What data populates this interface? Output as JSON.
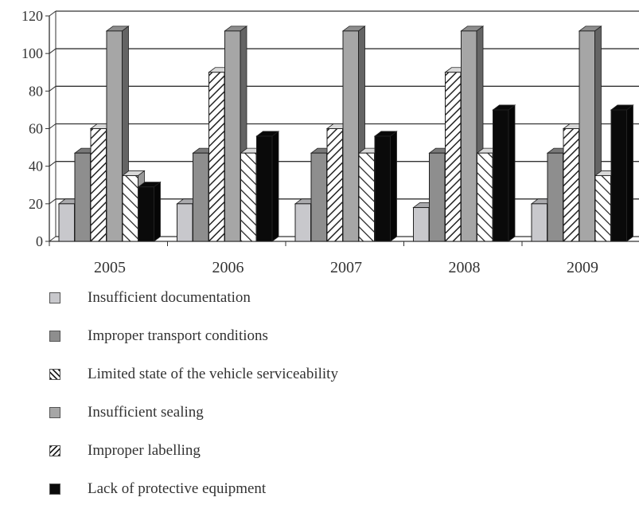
{
  "chart_data": {
    "type": "bar",
    "style": "3d-clustered-column",
    "categories": [
      "2005",
      "2006",
      "2007",
      "2008",
      "2009"
    ],
    "ylim": [
      0,
      120
    ],
    "yticks": [
      0,
      20,
      40,
      60,
      80,
      100,
      120
    ],
    "grid": true,
    "legend_position": "bottom",
    "series": [
      {
        "name": "Insufficient documentation",
        "values": [
          20,
          20,
          20,
          18,
          20
        ],
        "color": "#c8c8cc",
        "pattern": "solid"
      },
      {
        "name": "Improper transport conditions",
        "values": [
          47,
          47,
          47,
          47,
          47
        ],
        "color": "#8e8e8e",
        "pattern": "solid"
      },
      {
        "name": "Limited state of the vehicle serviceability",
        "values": [
          60,
          90,
          60,
          90,
          60
        ],
        "color": "#ffffff",
        "pattern": "hatch-dense"
      },
      {
        "name": "Insufficient sealing",
        "values": [
          112,
          112,
          112,
          112,
          112
        ],
        "color": "#a6a6a6",
        "pattern": "solid"
      },
      {
        "name": "Improper labelling",
        "values": [
          35,
          47,
          47,
          47,
          35
        ],
        "color": "#ffffff",
        "pattern": "hatch-wide"
      },
      {
        "name": "Lack of protective equipment",
        "values": [
          29,
          56,
          56,
          70,
          70
        ],
        "color": "#0a0a0a",
        "pattern": "solid"
      }
    ]
  }
}
